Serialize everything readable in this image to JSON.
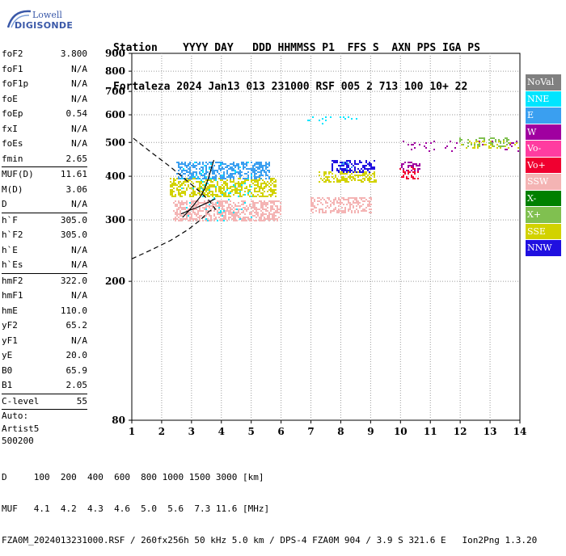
{
  "logo": {
    "line1": "Lowell",
    "line2": "DIGISONDE"
  },
  "header": {
    "labels": "Station    YYYY DAY   DDD HHMMSS P1  FFS S  AXN PPS IGA PS",
    "values": "Fortaleza 2024 Jan13 013 231000 RSF 005 2 713 100 10+ 22"
  },
  "params": {
    "group1": [
      {
        "name": "foF2",
        "value": "3.800"
      },
      {
        "name": "foF1",
        "value": "N/A"
      },
      {
        "name": "foF1p",
        "value": "N/A"
      },
      {
        "name": "foE",
        "value": "N/A"
      },
      {
        "name": "foEp",
        "value": "0.54"
      },
      {
        "name": "fxI",
        "value": "N/A"
      },
      {
        "name": "foEs",
        "value": "N/A"
      },
      {
        "name": "fmin",
        "value": "2.65"
      }
    ],
    "group2": [
      {
        "name": "MUF(D)",
        "value": "11.61"
      },
      {
        "name": "M(D)",
        "value": "3.06"
      },
      {
        "name": "D",
        "value": "N/A"
      }
    ],
    "group3": [
      {
        "name": "h`F",
        "value": "305.0"
      },
      {
        "name": "h`F2",
        "value": "305.0"
      },
      {
        "name": "h`E",
        "value": "N/A"
      },
      {
        "name": "h`Es",
        "value": "N/A"
      }
    ],
    "group4": [
      {
        "name": "hmF2",
        "value": "322.0"
      },
      {
        "name": "hmF1",
        "value": "N/A"
      },
      {
        "name": "hmE",
        "value": "110.0"
      },
      {
        "name": "yF2",
        "value": "65.2"
      },
      {
        "name": "yF1",
        "value": "N/A"
      },
      {
        "name": "yE",
        "value": "20.0"
      },
      {
        "name": "B0",
        "value": "65.9"
      },
      {
        "name": "B1",
        "value": "2.05"
      }
    ],
    "clevel": {
      "name": "C-level",
      "value": "55"
    },
    "auto_lines": [
      "Auto:",
      "Artist5",
      "500200"
    ]
  },
  "legend": [
    {
      "label": "NoVal",
      "color": "#808080"
    },
    {
      "label": "NNE",
      "color": "#00e5ff"
    },
    {
      "label": "E",
      "color": "#3a9ff0"
    },
    {
      "label": "W",
      "color": "#a000a0"
    },
    {
      "label": "Vo-",
      "color": "#ff3ca0"
    },
    {
      "label": "Vo+",
      "color": "#f00030"
    },
    {
      "label": "SSW",
      "color": "#f4b4b4"
    },
    {
      "label": "X-",
      "color": "#008000"
    },
    {
      "label": "X+",
      "color": "#80c050"
    },
    {
      "label": "SSE",
      "color": "#d2d200"
    },
    {
      "label": "NNW",
      "color": "#2010e0"
    }
  ],
  "footer": {
    "line1": "D     100  200  400  600  800 1000 1500 3000 [km]",
    "line2": "MUF   4.1  4.2  4.3  4.6  5.0  5.6  7.3 11.6 [MHz]",
    "line3": "FZA0M_2024013231000.RSF / 260fx256h 50 kHz 5.0 km / DPS-4 FZA0M 904 / 3.9 S 321.6 E   Ion2Png 1.3.20"
  },
  "chart_data": {
    "type": "scatter",
    "title": "",
    "xlabel": "",
    "ylabel": "",
    "xlim": [
      1,
      14
    ],
    "ylim": [
      80,
      900
    ],
    "y_scale": "log",
    "xticks": [
      1,
      2,
      3,
      4,
      5,
      6,
      7,
      8,
      9,
      10,
      11,
      12,
      13,
      14
    ],
    "yticks": [
      80,
      200,
      300,
      400,
      500,
      600,
      700,
      800,
      900
    ],
    "grid": "dotted",
    "clusters": [
      {
        "name": "SSW",
        "x_range": [
          2.4,
          6.0
        ],
        "y_range": [
          300,
          340
        ],
        "density": 0.55
      },
      {
        "name": "SSW",
        "x_range": [
          7.0,
          9.0
        ],
        "y_range": [
          315,
          345
        ],
        "density": 0.45
      },
      {
        "name": "SSE",
        "x_range": [
          2.3,
          5.8
        ],
        "y_range": [
          350,
          395
        ],
        "density": 0.5
      },
      {
        "name": "SSE",
        "x_range": [
          7.3,
          9.2
        ],
        "y_range": [
          385,
          410
        ],
        "density": 0.5
      },
      {
        "name": "E",
        "x_range": [
          2.5,
          5.6
        ],
        "y_range": [
          395,
          440
        ],
        "density": 0.55
      },
      {
        "name": "E",
        "x_range": [
          8.0,
          8.6
        ],
        "y_range": [
          420,
          440
        ],
        "density": 0.4
      },
      {
        "name": "NNW",
        "x_range": [
          7.7,
          9.1
        ],
        "y_range": [
          410,
          445
        ],
        "density": 0.35
      },
      {
        "name": "Vo+",
        "x_range": [
          10.0,
          10.6
        ],
        "y_range": [
          395,
          425
        ],
        "density": 0.35
      },
      {
        "name": "W",
        "x_range": [
          10.0,
          10.7
        ],
        "y_range": [
          415,
          440
        ],
        "density": 0.3
      },
      {
        "name": "NNE",
        "x_range": [
          2.6,
          5.0
        ],
        "y_range": [
          300,
          440
        ],
        "density": 0.04
      },
      {
        "name": "X+",
        "x_range": [
          12.0,
          13.6
        ],
        "y_range": [
          485,
          515
        ],
        "density": 0.25
      },
      {
        "name": "SSE",
        "x_range": [
          12.0,
          14.0
        ],
        "y_range": [
          480,
          505
        ],
        "density": 0.2
      },
      {
        "name": "W",
        "x_range": [
          10.0,
          14.0
        ],
        "y_range": [
          470,
          505
        ],
        "density": 0.06
      },
      {
        "name": "NNE",
        "x_range": [
          6.9,
          9.1
        ],
        "y_range": [
          565,
          590
        ],
        "density": 0.05
      }
    ],
    "traces": [
      {
        "name": "virtual-height-trace",
        "style": "solid",
        "points": [
          [
            2.7,
            305
          ],
          [
            2.9,
            318
          ],
          [
            3.1,
            333
          ],
          [
            3.3,
            350
          ],
          [
            3.45,
            370
          ],
          [
            3.55,
            392
          ],
          [
            3.63,
            412
          ],
          [
            3.7,
            432
          ],
          [
            3.75,
            445
          ]
        ]
      },
      {
        "name": "profile-upper",
        "style": "solid",
        "points": [
          [
            2.65,
            312
          ],
          [
            2.95,
            320
          ],
          [
            3.2,
            326
          ],
          [
            3.4,
            332
          ],
          [
            3.6,
            338
          ],
          [
            3.8,
            345
          ]
        ]
      },
      {
        "name": "electron-density-profile",
        "style": "dashed",
        "points": [
          [
            1.0,
            232
          ],
          [
            1.6,
            245
          ],
          [
            2.3,
            262
          ],
          [
            2.9,
            282
          ],
          [
            3.3,
            300
          ],
          [
            3.6,
            318
          ],
          [
            3.8,
            322
          ],
          [
            3.6,
            340
          ],
          [
            3.3,
            360
          ],
          [
            2.9,
            385
          ],
          [
            2.3,
            425
          ],
          [
            1.6,
            472
          ],
          [
            1.0,
            518
          ]
        ]
      }
    ]
  }
}
